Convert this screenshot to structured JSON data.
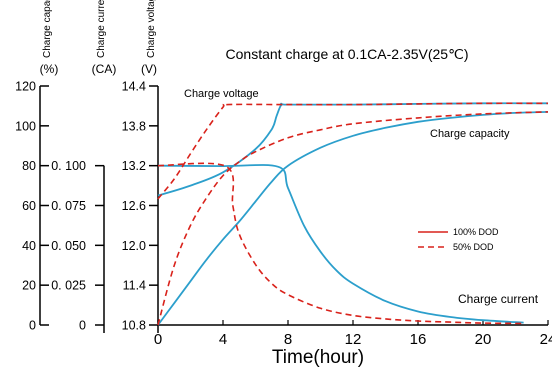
{
  "chart_data": {
    "type": "line",
    "title": "Constant charge at 0.1CA-2.35V(25℃)",
    "xlabel": "Time(hour)",
    "xlim": [
      0,
      24
    ],
    "x_ticks": [
      "0",
      "4",
      "8",
      "12",
      "16",
      "20",
      "24"
    ],
    "axes": [
      {
        "label": "Charge capacity",
        "unit": "(%)",
        "ylim": [
          0,
          120
        ],
        "ticks": [
          "0",
          "20",
          "40",
          "60",
          "80",
          "100",
          "120"
        ]
      },
      {
        "label": "Charge current",
        "unit": "(CA)",
        "ylim": [
          0,
          0.1
        ],
        "ticks": [
          "0",
          "0. 025",
          "0. 050",
          "0. 075",
          "0. 100"
        ]
      },
      {
        "label": "Charge voltage",
        "unit": "(V)",
        "ylim": [
          10.8,
          14.4
        ],
        "ticks": [
          "10.8",
          "11.4",
          "12.0",
          "12.6",
          "13.2",
          "13.8",
          "14.4"
        ]
      }
    ],
    "legend": {
      "position": "right",
      "entries": [
        {
          "name": "100% DOD",
          "style": "solid"
        },
        {
          "name": "50% DOD",
          "style": "dashed"
        }
      ]
    },
    "annotations": [
      "Charge voltage",
      "Charge capacity",
      "Charge current"
    ],
    "colors": {
      "dod100": "#2c9fcc",
      "dod50": "#d9221b"
    },
    "series": [
      {
        "group": "100% DOD",
        "quantity": "Charge voltage",
        "axis": "V",
        "x": [
          0,
          2,
          4,
          6,
          7,
          7.3,
          7.6,
          8,
          12,
          16,
          20,
          24
        ],
        "y": [
          12.75,
          12.9,
          13.1,
          13.45,
          13.75,
          13.95,
          14.12,
          14.12,
          14.12,
          14.13,
          14.14,
          14.14
        ]
      },
      {
        "group": "100% DOD",
        "quantity": "Charge capacity",
        "axis": "%",
        "x": [
          0,
          1,
          2,
          3,
          4,
          5,
          6,
          7,
          8,
          10,
          12,
          14,
          16,
          18,
          20,
          22,
          24
        ],
        "y": [
          0,
          11,
          22,
          33,
          43,
          52,
          62,
          72,
          80,
          89,
          95,
          99,
          102,
          104,
          105.5,
          106.5,
          107
        ]
      },
      {
        "group": "100% DOD",
        "quantity": "Charge current",
        "axis": "CA",
        "x": [
          0,
          4,
          7.4,
          8,
          9,
          10,
          11,
          12,
          14,
          16,
          18,
          20,
          22.5
        ],
        "y": [
          0.1,
          0.0997,
          0.0993,
          0.086,
          0.062,
          0.046,
          0.034,
          0.026,
          0.015,
          0.0085,
          0.005,
          0.003,
          0.0015
        ]
      },
      {
        "group": "50% DOD",
        "quantity": "Charge voltage",
        "axis": "V",
        "x": [
          0,
          1,
          2,
          3,
          4,
          4.3,
          8,
          12,
          16,
          20,
          24
        ],
        "y": [
          12.7,
          13.0,
          13.38,
          13.75,
          14.08,
          14.12,
          14.12,
          14.12,
          14.13,
          14.14,
          14.14
        ]
      },
      {
        "group": "50% DOD",
        "quantity": "Charge capacity",
        "axis": "%",
        "x": [
          0,
          1,
          2,
          3,
          4,
          5,
          6,
          8,
          10,
          12,
          16,
          20,
          24
        ],
        "y": [
          0,
          30,
          50,
          64,
          75,
          82,
          87,
          94,
          98,
          101,
          104,
          106,
          107
        ]
      },
      {
        "group": "50% DOD",
        "quantity": "Charge current",
        "axis": "CA",
        "x": [
          0,
          4.2,
          4.6,
          5,
          6,
          7,
          8,
          10,
          12,
          14,
          16,
          18,
          20,
          22.5
        ],
        "y": [
          0.1,
          0.0995,
          0.075,
          0.057,
          0.038,
          0.026,
          0.019,
          0.0105,
          0.006,
          0.0038,
          0.0025,
          0.0018,
          0.0012,
          0.001
        ]
      }
    ]
  }
}
